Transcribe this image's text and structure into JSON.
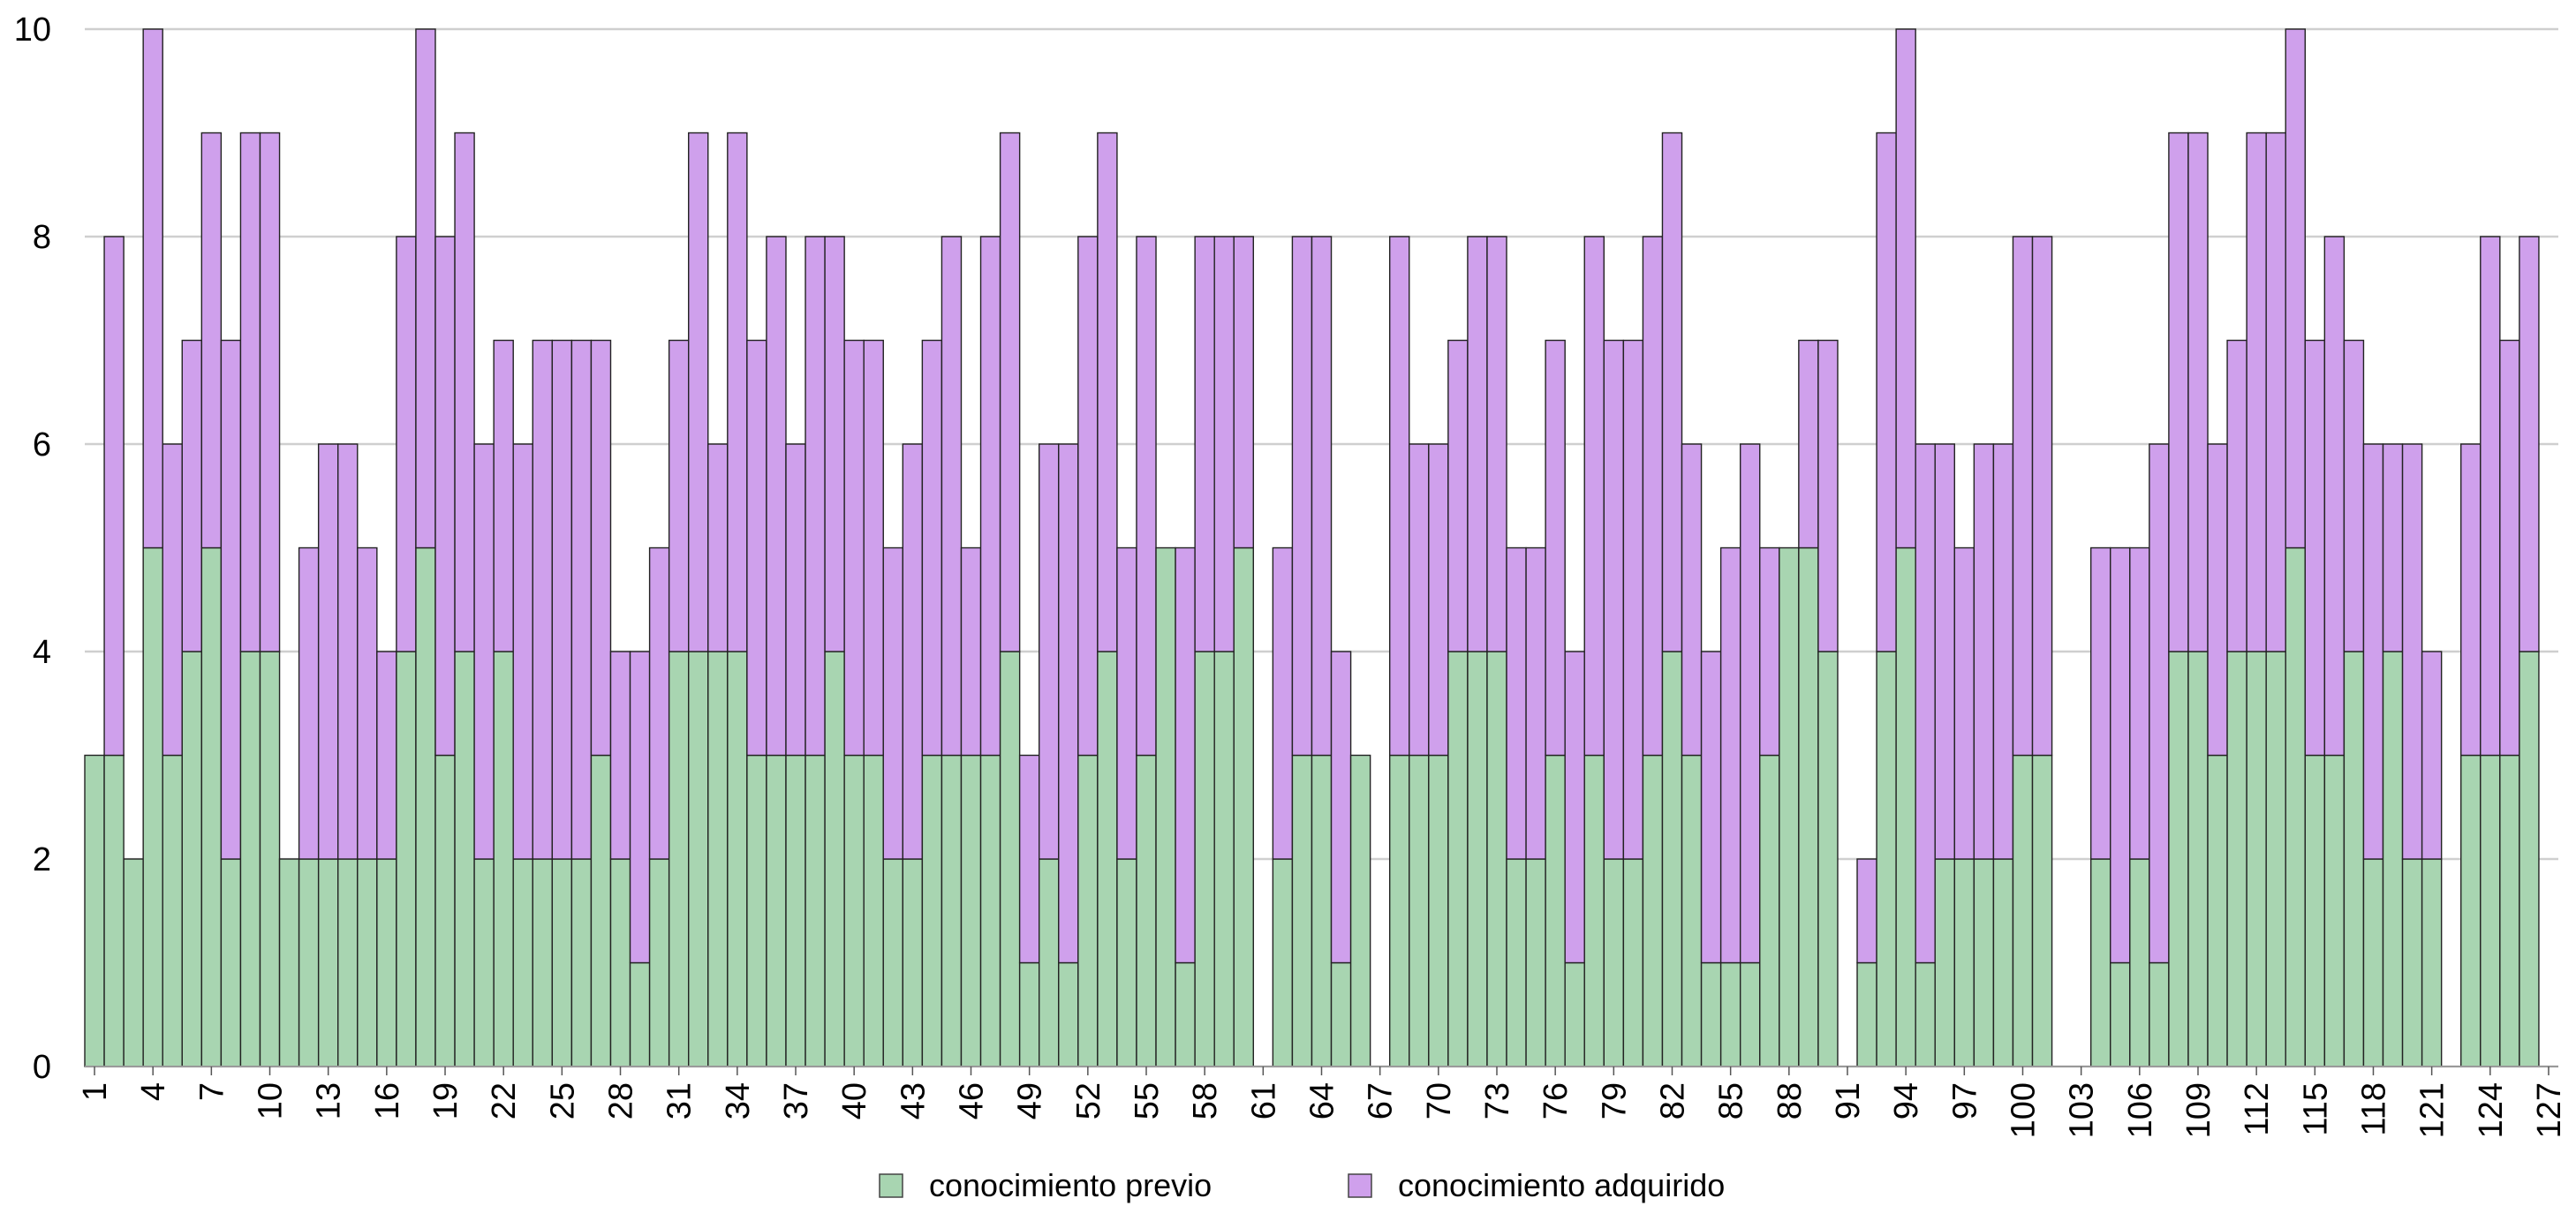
{
  "chart_data": {
    "type": "bar",
    "stacked": true,
    "title": "",
    "xlabel": "",
    "ylabel": "",
    "ylim": [
      0,
      10
    ],
    "yticks": [
      0,
      2,
      4,
      6,
      8,
      10
    ],
    "grid": true,
    "legend_position": "bottom-center",
    "x_tick_labels": [
      "1",
      "4",
      "7",
      "10",
      "13",
      "16",
      "19",
      "22",
      "25",
      "28",
      "31",
      "34",
      "37",
      "40",
      "43",
      "46",
      "49",
      "52",
      "55",
      "58",
      "61",
      "64",
      "67",
      "70",
      "73",
      "76",
      "79",
      "82",
      "85",
      "88",
      "91",
      "94",
      "97",
      "100",
      "103",
      "106",
      "109",
      "112",
      "115",
      "118",
      "121",
      "124",
      "127"
    ],
    "categories": [
      1,
      2,
      3,
      4,
      5,
      6,
      7,
      8,
      9,
      10,
      11,
      12,
      13,
      14,
      15,
      16,
      17,
      18,
      19,
      20,
      21,
      22,
      23,
      24,
      25,
      26,
      27,
      28,
      29,
      30,
      31,
      32,
      33,
      34,
      35,
      36,
      37,
      38,
      39,
      40,
      41,
      42,
      43,
      44,
      45,
      46,
      47,
      48,
      49,
      50,
      51,
      52,
      53,
      54,
      55,
      56,
      57,
      58,
      59,
      60,
      61,
      62,
      63,
      64,
      65,
      66,
      67,
      68,
      69,
      70,
      71,
      72,
      73,
      74,
      75,
      76,
      77,
      78,
      79,
      80,
      81,
      82,
      83,
      84,
      85,
      86,
      87,
      88,
      89,
      90,
      91,
      92,
      93,
      94,
      95,
      96,
      97,
      98,
      99,
      100,
      101,
      102,
      103,
      104,
      105,
      106,
      107,
      108,
      109,
      110,
      111,
      112,
      113,
      114,
      115,
      116,
      117,
      118,
      119,
      120,
      121,
      122,
      123,
      124,
      125,
      126,
      127
    ],
    "series": [
      {
        "name": "conocimiento previo",
        "color": "#a8d5b1",
        "values": [
          3,
          3,
          2,
          5,
          3,
          4,
          5,
          2,
          4,
          4,
          2,
          2,
          2,
          2,
          2,
          2,
          4,
          5,
          3,
          4,
          2,
          4,
          2,
          2,
          2,
          2,
          3,
          2,
          1,
          2,
          4,
          4,
          4,
          4,
          3,
          3,
          3,
          3,
          4,
          3,
          3,
          2,
          2,
          3,
          3,
          3,
          3,
          4,
          1,
          2,
          1,
          3,
          4,
          2,
          3,
          5,
          1,
          4,
          4,
          5,
          0,
          2,
          3,
          3,
          1,
          3,
          0,
          3,
          3,
          3,
          4,
          4,
          4,
          2,
          2,
          3,
          1,
          3,
          2,
          2,
          3,
          4,
          3,
          1,
          1,
          1,
          3,
          5,
          5,
          4,
          0,
          1,
          4,
          5,
          1,
          2,
          2,
          2,
          2,
          3,
          3,
          0,
          0,
          2,
          1,
          2,
          1,
          4,
          4,
          3,
          4,
          4,
          4,
          5,
          3,
          3,
          4,
          2,
          4,
          2,
          2,
          0,
          3,
          3,
          3,
          4,
          0
        ]
      },
      {
        "name": "conocimiento adquirido",
        "color": "#cfa0ec",
        "values": [
          0,
          5,
          0,
          5,
          3,
          3,
          4,
          5,
          5,
          5,
          0,
          3,
          4,
          4,
          3,
          2,
          4,
          5,
          5,
          5,
          4,
          3,
          4,
          5,
          5,
          5,
          4,
          2,
          3,
          3,
          3,
          5,
          2,
          5,
          4,
          5,
          3,
          5,
          4,
          4,
          4,
          3,
          4,
          4,
          5,
          2,
          5,
          5,
          2,
          4,
          5,
          5,
          5,
          3,
          5,
          0,
          4,
          4,
          4,
          3,
          0,
          3,
          5,
          5,
          3,
          0,
          0,
          5,
          3,
          3,
          3,
          4,
          4,
          3,
          3,
          4,
          3,
          5,
          5,
          5,
          5,
          5,
          3,
          3,
          4,
          5,
          2,
          0,
          2,
          3,
          0,
          1,
          5,
          5,
          5,
          4,
          3,
          4,
          4,
          5,
          5,
          0,
          0,
          3,
          4,
          3,
          5,
          5,
          5,
          3,
          3,
          5,
          5,
          5,
          4,
          5,
          3,
          4,
          2,
          4,
          2,
          0,
          3,
          5,
          4,
          4,
          0
        ]
      }
    ]
  }
}
